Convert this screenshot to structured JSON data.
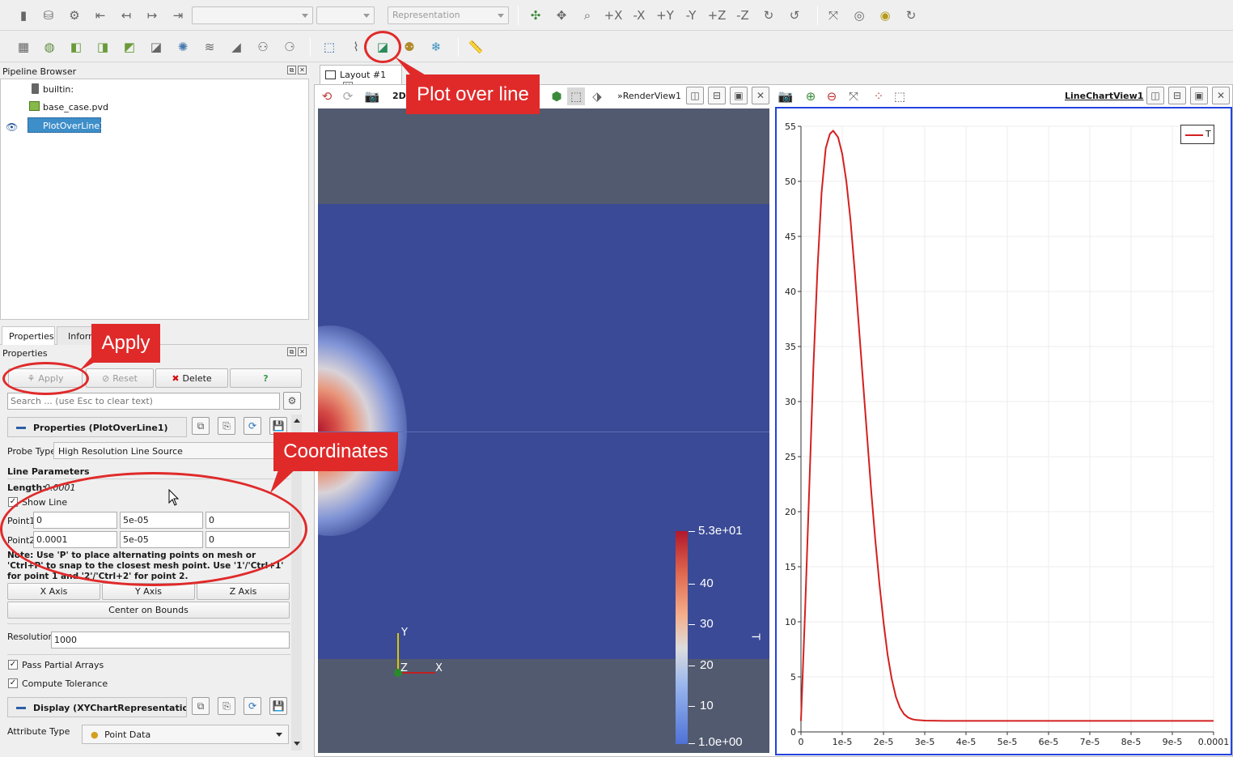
{
  "toolbar_top": {
    "representation_placeholder": "Representation"
  },
  "toolbar_second": {},
  "pipeline": {
    "title": "Pipeline Browser",
    "items": [
      {
        "label": "builtin:"
      },
      {
        "label": "base_case.pvd"
      },
      {
        "label": "PlotOverLine1"
      }
    ]
  },
  "properties_panel": {
    "tabs": [
      "Properties",
      "Inform"
    ],
    "title": "Properties",
    "apply": "Apply",
    "reset": "Reset",
    "delete": "Delete",
    "help": "?",
    "search_placeholder": "Search ... (use Esc to clear text)",
    "section_title": "Properties (PlotOverLine1)",
    "probe_type_label": "Probe Type",
    "probe_type_value": "High Resolution Line Source",
    "line_params": "Line Parameters",
    "length_label": "Length:",
    "length_value": "0.0001",
    "show_line": "Show Line",
    "point1_label": "Point1",
    "point1": [
      "0",
      "5e-05",
      "0"
    ],
    "point2_label": "Point2",
    "point2": [
      "0.0001",
      "5e-05",
      "0"
    ],
    "note": "Note: Use 'P' to place alternating points on mesh or 'Ctrl+P' to snap to the closest mesh point. Use '1'/'Ctrl+1' for point 1 and '2'/'Ctrl+2' for point 2.",
    "x_axis": "X Axis",
    "y_axis": "Y Axis",
    "z_axis": "Z Axis",
    "center_bounds": "Center on Bounds",
    "resolution_label": "Resolution",
    "resolution_value": "1000",
    "pass_partial": "Pass Partial Arrays",
    "compute_tol": "Compute Tolerance",
    "display_title": "Display (XYChartRepresentation",
    "attribute_type_label": "Attribute Type",
    "attribute_type_value": "Point Data"
  },
  "layout": {
    "tab_label": "Layout #1",
    "render_view": "RenderView1",
    "chart_view": "LineChartView1",
    "mode_2d": "2D"
  },
  "render": {
    "colorbar_max": "5.3e+01",
    "colorbar_min": "1.0e+00",
    "colorbar_ticks": [
      "40",
      "30",
      "20",
      "10"
    ],
    "colorbar_title": "T",
    "axes": {
      "y": "Y",
      "x": "X",
      "z": "Z"
    }
  },
  "callouts": {
    "plot_over_line": "Plot over line",
    "apply": "Apply",
    "coordinates": "Coordinates"
  },
  "chart_data": {
    "type": "line",
    "series": [
      {
        "name": "T",
        "color": "#d42020",
        "x": [
          0,
          1e-06,
          2e-06,
          3e-06,
          4e-06,
          5e-06,
          6e-06,
          7e-06,
          7.8e-06,
          9e-06,
          1e-05,
          1.1e-05,
          1.2e-05,
          1.3e-05,
          1.4e-05,
          1.5e-05,
          1.6e-05,
          1.7e-05,
          1.8e-05,
          1.9e-05,
          2e-05,
          2.1e-05,
          2.2e-05,
          2.3e-05,
          2.4e-05,
          2.5e-05,
          2.6e-05,
          2.7e-05,
          2.8e-05,
          3e-05,
          3.5e-05,
          4e-05,
          5e-05,
          6e-05,
          7e-05,
          8e-05,
          9e-05,
          0.0001
        ],
        "y": [
          1,
          11,
          22,
          33,
          42,
          49,
          53,
          54.3,
          54.6,
          54,
          52.5,
          50,
          46.5,
          42,
          37,
          32,
          27,
          22,
          17.5,
          13.5,
          10,
          7,
          4.8,
          3.2,
          2.2,
          1.6,
          1.3,
          1.15,
          1.08,
          1.03,
          1.0,
          1.0,
          1.0,
          1.0,
          1.0,
          1.0,
          1.0,
          1.0
        ]
      }
    ],
    "x_ticks": [
      "0",
      "1e-5",
      "2e-5",
      "3e-5",
      "4e-5",
      "5e-5",
      "6e-5",
      "7e-5",
      "8e-5",
      "9e-5",
      "0.0001"
    ],
    "y_ticks": [
      "0",
      "5",
      "10",
      "15",
      "20",
      "25",
      "30",
      "35",
      "40",
      "45",
      "50",
      "55"
    ],
    "xlim": [
      0,
      0.0001
    ],
    "ylim": [
      0,
      55
    ],
    "grid": true,
    "legend_position": "top-right"
  }
}
